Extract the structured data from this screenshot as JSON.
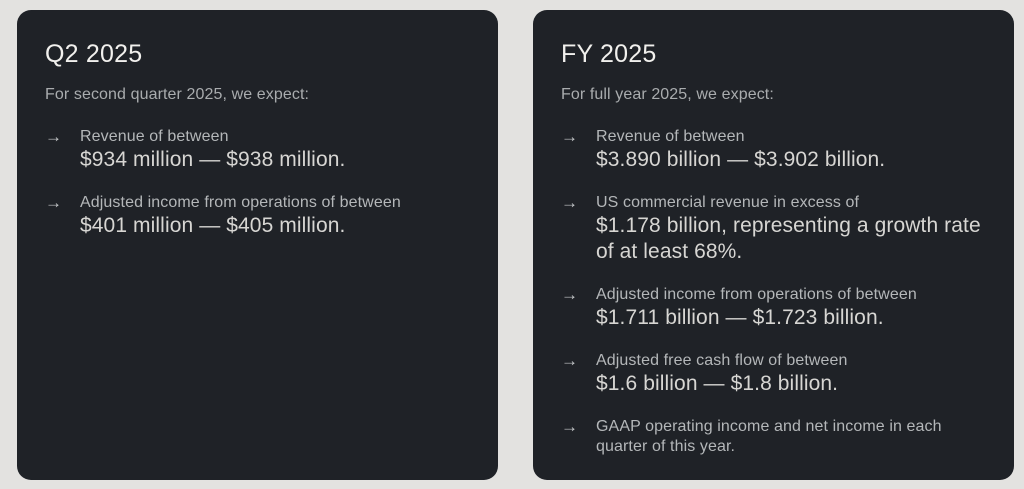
{
  "colors": {
    "page_bg": "#e3e2e0",
    "card_bg": "#1f2227",
    "title_text": "#f1f0ed",
    "intro_text": "#a9acae",
    "label_text": "#b4b7b9",
    "value_text": "#d7d6d3",
    "arrow": "#c4c7c9"
  },
  "icons": {
    "bullet_arrow": "→"
  },
  "cards": [
    {
      "title": "Q2 2025",
      "intro": "For second quarter 2025, we expect:",
      "items": [
        {
          "label": "Revenue of between",
          "value": "$934 million — $938 million."
        },
        {
          "label": "Adjusted income from operations of between",
          "value": "$401 million — $405 million."
        }
      ]
    },
    {
      "title": "FY 2025",
      "intro": "For full year 2025, we expect:",
      "items": [
        {
          "label": "Revenue of between",
          "value": "$3.890 billion — $3.902 billion."
        },
        {
          "label": "US commercial revenue in excess of",
          "value": "$1.178 billion, representing a growth rate of at least 68%."
        },
        {
          "label": "Adjusted income from operations of between",
          "value": "$1.711 billion — $1.723 billion."
        },
        {
          "label": "Adjusted free cash flow of between",
          "value": "$1.6 billion — $1.8 billion."
        },
        {
          "label": "GAAP operating income and net income in each quarter of this year."
        }
      ]
    }
  ]
}
